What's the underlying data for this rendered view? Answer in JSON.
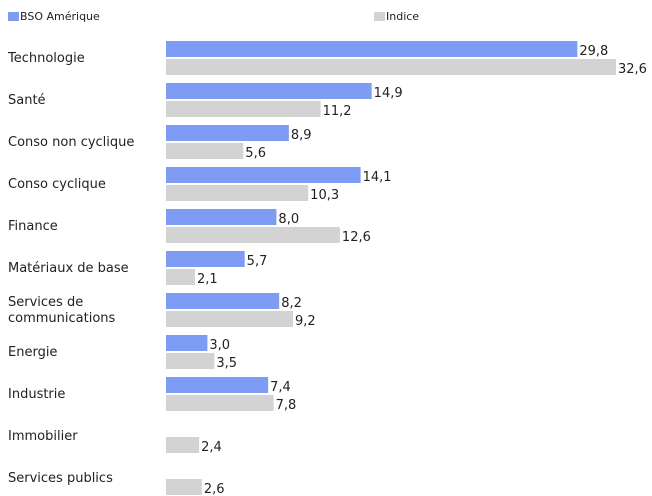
{
  "chart_data": {
    "type": "bar",
    "orientation": "horizontal",
    "categories": [
      "Technologie",
      "Santé",
      "Conso non cyclique",
      "Conso cyclique",
      "Finance",
      "Matériaux de base",
      "Services de communications",
      "Energie",
      "Industrie",
      "Immobilier",
      "Services publics"
    ],
    "series": [
      {
        "name": "BSO Amérique",
        "color": "#7f9cf5",
        "values": [
          29.8,
          14.9,
          8.9,
          14.1,
          8.0,
          5.7,
          8.2,
          3.0,
          7.4,
          null,
          null
        ],
        "labels": [
          "29,8",
          "14,9",
          "8,9",
          "14,1",
          "8,0",
          "5,7",
          "8,2",
          "3,0",
          "7,4",
          "",
          ""
        ]
      },
      {
        "name": "Indice",
        "color": "#d3d3d3",
        "values": [
          32.6,
          11.2,
          5.6,
          10.3,
          12.6,
          2.1,
          9.2,
          3.5,
          7.8,
          2.4,
          2.6
        ],
        "labels": [
          "32,6",
          "11,2",
          "5,6",
          "10,3",
          "12,6",
          "2,1",
          "9,2",
          "3,5",
          "7,8",
          "2,4",
          "2,6"
        ]
      }
    ],
    "xlim": [
      0,
      33
    ],
    "legend": "top",
    "grid": false
  }
}
